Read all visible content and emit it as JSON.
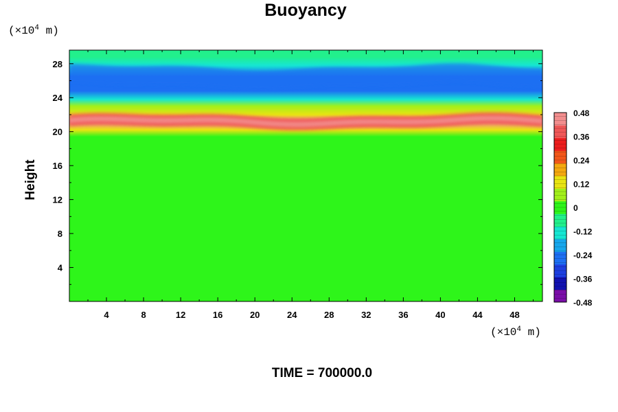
{
  "chart_data": {
    "type": "heatmap",
    "title": "Buoyancy",
    "ylabel": "Height",
    "xlabel": "",
    "y_unit_text": "(×10",
    "y_unit_exp": "4",
    "y_unit_suffix": " m)",
    "x_unit_text": "(×10",
    "x_unit_exp": "4",
    "x_unit_suffix": " m)",
    "xlim": [
      0,
      51
    ],
    "ylim": [
      0,
      29.6
    ],
    "x_ticks": [
      "4",
      "8",
      "12",
      "16",
      "20",
      "24",
      "28",
      "32",
      "36",
      "40",
      "44",
      "48"
    ],
    "y_ticks": [
      "4",
      "8",
      "12",
      "16",
      "20",
      "24",
      "28"
    ],
    "x_tick_values": [
      4,
      8,
      12,
      16,
      20,
      24,
      28,
      32,
      36,
      40,
      44,
      48
    ],
    "y_tick_values": [
      4,
      8,
      12,
      16,
      20,
      24,
      28
    ],
    "colorbar": {
      "range": [
        -0.48,
        0.48
      ],
      "ticks": [
        "0.48",
        "0.36",
        "0.24",
        "0.12",
        "0",
        "-0.12",
        "-0.24",
        "-0.36",
        "-0.48"
      ],
      "tick_values": [
        0.48,
        0.36,
        0.24,
        0.12,
        0,
        -0.12,
        -0.24,
        -0.36,
        -0.48
      ],
      "colors": [
        "#7a0ea8",
        "#1212b0",
        "#1e3fe0",
        "#1d6ff2",
        "#17a7ec",
        "#16e6d2",
        "#22f08c",
        "#2ef51a",
        "#a2f01a",
        "#e8e412",
        "#f4a80f",
        "#f2571a",
        "#ec1d1d",
        "#f05858",
        "#f28e8e"
      ]
    },
    "profile": [
      {
        "height": 0,
        "value": 0.0
      },
      {
        "height": 10,
        "value": 0.01
      },
      {
        "height": 11.2,
        "value": 0.03
      },
      {
        "height": 19.4,
        "value": 0.02
      },
      {
        "height": 20.2,
        "value": 0.12
      },
      {
        "height": 21.2,
        "value": 0.42
      },
      {
        "height": 22.0,
        "value": 0.14
      },
      {
        "height": 23.0,
        "value": 0.04
      },
      {
        "height": 23.8,
        "value": -0.12
      },
      {
        "height": 24.8,
        "value": -0.26
      },
      {
        "height": 26.5,
        "value": -0.27
      },
      {
        "height": 27.8,
        "value": -0.14
      },
      {
        "height": 28.8,
        "value": -0.08
      },
      {
        "height": 29.6,
        "value": -0.07
      }
    ],
    "time_label": "TIME = 700000.0"
  }
}
